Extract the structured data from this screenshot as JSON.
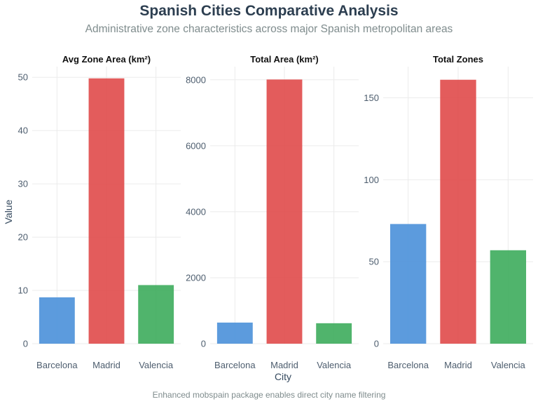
{
  "title": "Spanish Cities Comparative Analysis",
  "subtitle": "Administrative zone characteristics across major Spanish metropolitan areas",
  "caption": "Enhanced mobspain package enables direct city name filtering",
  "colors": {
    "Barcelona": "#4a90d9",
    "Madrid": "#e04a4a",
    "Valencia": "#3dac5c",
    "title": "#2c3e50",
    "subtitle": "#7f8c8d"
  },
  "chart_data": {
    "type": "bar",
    "xlabel": "City",
    "ylabel": "Value",
    "categories": [
      "Barcelona",
      "Madrid",
      "Valencia"
    ],
    "grid": true,
    "legend": "none",
    "facets": [
      {
        "title": "Avg Zone Area (km²)",
        "values": [
          8.7,
          49.8,
          11.0
        ],
        "ylim": [
          0,
          52
        ],
        "yticks": [
          0,
          10,
          20,
          30,
          40,
          50
        ]
      },
      {
        "title": "Total Area (km²)",
        "values": [
          640,
          8010,
          620
        ],
        "ylim": [
          0,
          8400
        ],
        "yticks": [
          0,
          2000,
          4000,
          6000,
          8000
        ]
      },
      {
        "title": "Total Zones",
        "values": [
          73,
          161,
          57
        ],
        "ylim": [
          0,
          169
        ],
        "yticks": [
          0,
          50,
          100,
          150
        ]
      }
    ]
  }
}
